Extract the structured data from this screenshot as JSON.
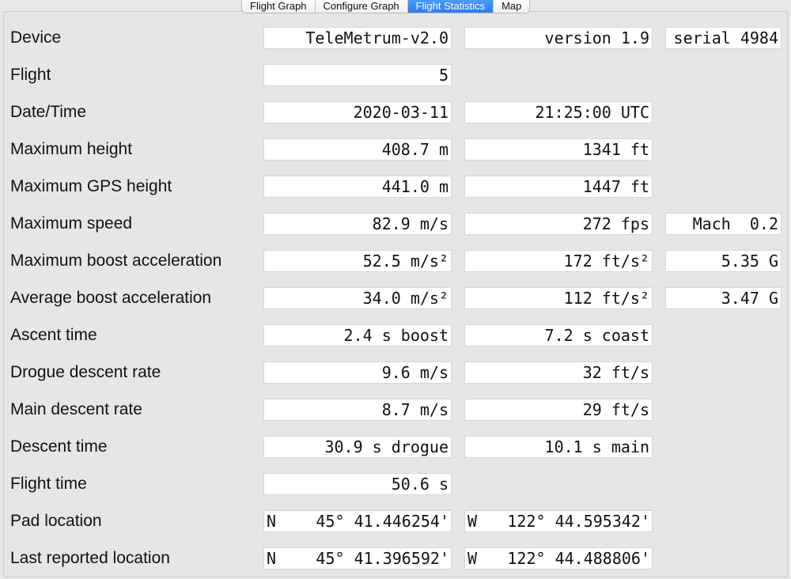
{
  "tabs": [
    {
      "label": "Flight Graph"
    },
    {
      "label": "Configure Graph"
    },
    {
      "label": "Flight Statistics"
    },
    {
      "label": "Map"
    }
  ],
  "stats": {
    "device": {
      "label": "Device",
      "v1": "TeleMetrum-v2.0",
      "v2": "version 1.9",
      "v3": "serial 4984"
    },
    "flight": {
      "label": "Flight",
      "v1": "5"
    },
    "datetime": {
      "label": "Date/Time",
      "v1": "2020-03-11",
      "v2": "21:25:00 UTC"
    },
    "max_height": {
      "label": "Maximum height",
      "v1": "408.7 m",
      "v2": "1341 ft"
    },
    "max_gps_height": {
      "label": "Maximum GPS height",
      "v1": "441.0 m",
      "v2": "1447 ft"
    },
    "max_speed": {
      "label": "Maximum speed",
      "v1": "82.9 m/s",
      "v2": "272 fps",
      "v3": "Mach  0.2"
    },
    "max_boost_accel": {
      "label": "Maximum boost acceleration",
      "v1": "52.5 m/s²",
      "v2": "172 ft/s²",
      "v3": "5.35 G"
    },
    "avg_boost_accel": {
      "label": "Average boost acceleration",
      "v1": "34.0 m/s²",
      "v2": "112 ft/s²",
      "v3": "3.47 G"
    },
    "ascent_time": {
      "label": "Ascent time",
      "v1": "2.4 s boost",
      "v2": "7.2 s coast"
    },
    "drogue_rate": {
      "label": "Drogue descent rate",
      "v1": "9.6 m/s",
      "v2": "32 ft/s"
    },
    "main_rate": {
      "label": "Main descent rate",
      "v1": "8.7 m/s",
      "v2": "29 ft/s"
    },
    "descent_time": {
      "label": "Descent time",
      "v1": "30.9 s drogue",
      "v2": "10.1 s main"
    },
    "flight_time": {
      "label": "Flight time",
      "v1": "50.6 s"
    },
    "pad_location": {
      "label": "Pad location",
      "lat_dir": "N",
      "lat": "45° 41.446254'",
      "lon_dir": "W",
      "lon": "122° 44.595342'"
    },
    "last_location": {
      "label": "Last reported location",
      "lat_dir": "N",
      "lat": "45° 41.396592'",
      "lon_dir": "W",
      "lon": "122° 44.488806'"
    }
  },
  "colors": {
    "active_tab": "#2b7ef0",
    "background": "#e8e8e8",
    "field_background": "#ffffff"
  }
}
